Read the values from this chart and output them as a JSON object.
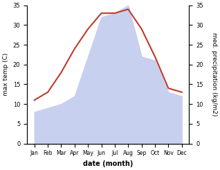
{
  "months": [
    "Jan",
    "Feb",
    "Mar",
    "Apr",
    "May",
    "Jun",
    "Jul",
    "Aug",
    "Sep",
    "Oct",
    "Nov",
    "Dec"
  ],
  "temp": [
    11,
    13,
    18,
    24,
    29,
    33,
    33,
    34,
    29,
    22,
    14,
    13
  ],
  "precip": [
    8,
    9,
    10,
    12,
    22,
    32,
    33,
    35,
    22,
    21,
    13,
    12
  ],
  "temp_color": "#c0392b",
  "precip_fill_color": "#c8d0f0",
  "ylim": [
    0,
    35
  ],
  "yticks": [
    0,
    5,
    10,
    15,
    20,
    25,
    30,
    35
  ],
  "xlabel": "date (month)",
  "ylabel_left": "max temp (C)",
  "ylabel_right": "med. precipitation (kg/m2)",
  "bg_color": "#ffffff"
}
